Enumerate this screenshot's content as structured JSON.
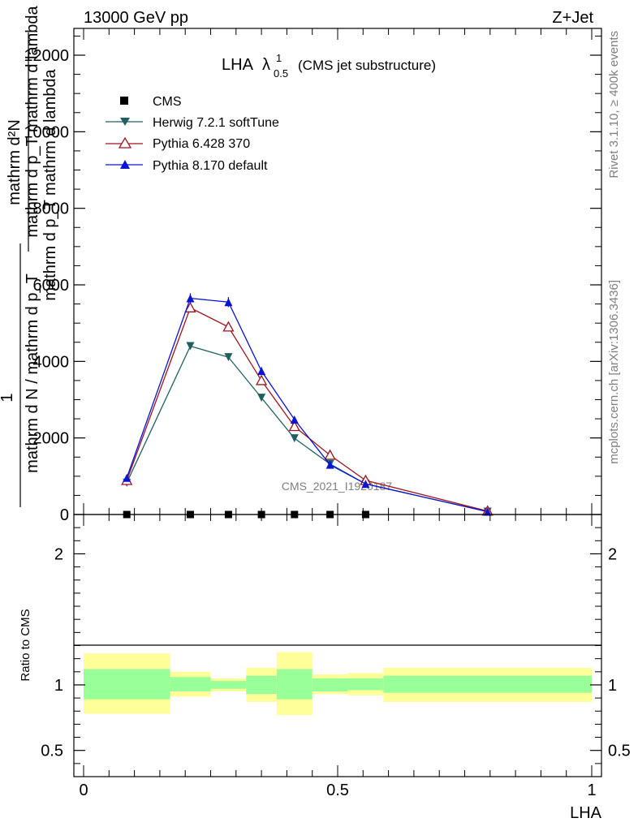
{
  "header": {
    "left": "13000 GeV pp",
    "right": "Z+Jet"
  },
  "side_text": {
    "rivet": "Rivet 3.1.10, ≥ 400k events",
    "mcplots": "mcplots.cern.ch [arXiv:1306.3436]"
  },
  "watermark": "CMS_2021_I1920187",
  "ylabel_top": {
    "line1": "mathrm d²N",
    "line2": "mathrm d p_T mathrm d lambda",
    "line3": "mathrm d p_T mathrm d lambda"
  },
  "ylabel_bottom": {
    "num": "1",
    "den": "mathrm d N / mathrm d p_T"
  },
  "ratio_ylabel": "Ratio to CMS",
  "colors": {
    "herwig": "#1f5f5f",
    "pythia6": "#a0141e",
    "pythia8": "#0a14d2",
    "band_inner": "#99ff99",
    "band_outer": "#ffff99"
  },
  "chart_data": {
    "type": "line",
    "title": "LHA",
    "title_lambda": "λ",
    "title_sup": "1",
    "title_sub": "0.5",
    "title_suffix": "(CMS jet substructure)",
    "xlabel": "LHA",
    "x_ticks": [
      "0",
      "0.5",
      "1"
    ],
    "xlim": [
      0,
      1
    ],
    "main_ylim": [
      0,
      12700
    ],
    "main_y_ticks": [
      "0",
      "2000",
      "4000",
      "6000",
      "8000",
      "10000",
      "12000"
    ],
    "ratio_ylim": [
      0.3,
      2.3
    ],
    "ratio_y_ticks": [
      "0.5",
      "1",
      "2"
    ],
    "legend": [
      {
        "name": "CMS",
        "key": "cms"
      },
      {
        "name": "Herwig 7.2.1 softTune",
        "key": "herwig"
      },
      {
        "name": "Pythia 6.428 370",
        "key": "pythia6"
      },
      {
        "name": "Pythia 8.170 default",
        "key": "pythia8"
      }
    ],
    "x": [
      0.085,
      0.21,
      0.285,
      0.35,
      0.415,
      0.485,
      0.555,
      0.795
    ],
    "bin_edges": [
      0,
      0.17,
      0.25,
      0.32,
      0.38,
      0.45,
      0.52,
      0.59,
      1.0
    ],
    "cms": [
      0,
      0,
      0,
      0,
      0,
      0,
      0
    ],
    "cms_x": [
      0.085,
      0.21,
      0.285,
      0.35,
      0.415,
      0.485,
      0.555
    ],
    "series": [
      {
        "name": "Herwig 7.2.1 softTune",
        "key": "herwig",
        "marker": "triangle-down-filled",
        "values": [
          830,
          4400,
          4110,
          3050,
          1990,
          1320,
          800,
          75
        ]
      },
      {
        "name": "Pythia 6.428 370",
        "key": "pythia6",
        "marker": "triangle-up-open",
        "values": [
          890,
          5400,
          4900,
          3500,
          2300,
          1550,
          890,
          90
        ]
      },
      {
        "name": "Pythia 8.170 default",
        "key": "pythia8",
        "marker": "triangle-up-filled",
        "values": [
          960,
          5650,
          5550,
          3750,
          2480,
          1300,
          800,
          75
        ],
        "errors": [
          60,
          130,
          130,
          100,
          80,
          50,
          40,
          20
        ]
      }
    ],
    "ratio_bands": {
      "inner_lo": [
        0.89,
        0.95,
        0.97,
        0.93,
        0.89,
        0.95,
        0.96,
        0.94
      ],
      "inner_hi": [
        1.12,
        1.06,
        1.03,
        1.07,
        1.12,
        1.05,
        1.05,
        1.07
      ],
      "outer_lo": [
        0.78,
        0.91,
        0.95,
        0.87,
        0.77,
        0.93,
        0.92,
        0.87
      ],
      "outer_hi": [
        1.24,
        1.1,
        1.05,
        1.13,
        1.25,
        1.08,
        1.09,
        1.13
      ]
    }
  }
}
